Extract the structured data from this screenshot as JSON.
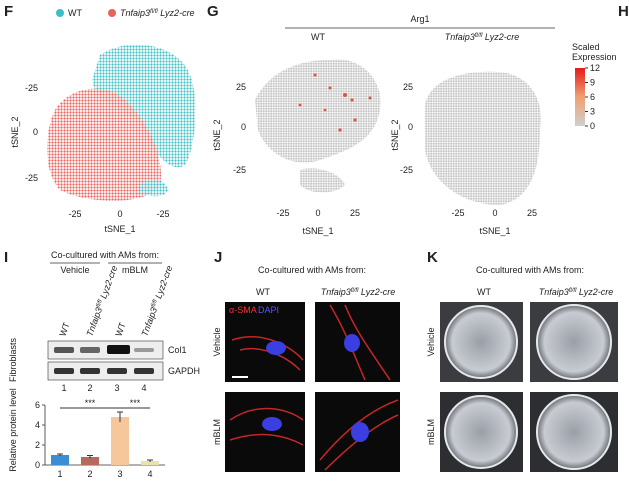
{
  "panel_f": {
    "label": "F",
    "legend": [
      {
        "name": "WT",
        "color": "#3bbfc4"
      },
      {
        "gene": "Tnfaip3",
        "sup": "fl/fl",
        "driver": "Lyz2-cre",
        "color": "#e8615a"
      }
    ],
    "yticks": [
      "-25",
      "0",
      "-25"
    ],
    "xticks": [
      "-25",
      "0",
      "-25"
    ],
    "xlabel": "tSNE_1",
    "ylabel": "tSNE_2"
  },
  "panel_g": {
    "label": "G",
    "title": "Arg1",
    "left_title": "WT",
    "right_title": {
      "gene": "Tnfaip3",
      "sup": "fl/fl",
      "driver": "Lyz2-cre"
    },
    "yticks": [
      "25",
      "0",
      "-25"
    ],
    "xticks": [
      "-25",
      "0",
      "25"
    ],
    "xlabel": "tSNE_1",
    "ylabel": "tSNE_2",
    "colorbar": {
      "title": [
        "Scaled",
        "Expression"
      ],
      "lim": [
        0,
        12
      ],
      "ticks": [
        12,
        9,
        6,
        3,
        0
      ]
    }
  },
  "panel_h": {
    "label": "H"
  },
  "panel_i": {
    "label": "I",
    "header": "Co-cultured with AMs from:",
    "groups": [
      "Vehicle",
      "mBLM"
    ],
    "lanes": [
      "WT",
      {
        "gene": "Tnfaip3",
        "sup": "fl/fl",
        "driver": "Lyz2-cre"
      },
      "WT",
      {
        "gene": "Tnfaip3",
        "sup": "fl/fl",
        "driver": "Lyz2-cre"
      }
    ],
    "row_title": "Fibroblasts",
    "bands": [
      "Col1",
      "GAPDH"
    ],
    "lane_numbers": [
      "1",
      "2",
      "3",
      "4"
    ],
    "chart_data": {
      "type": "bar",
      "ylabel": "Relative protein level",
      "categories": [
        "1",
        "2",
        "3",
        "4"
      ],
      "values": [
        1.0,
        0.8,
        4.8,
        0.4
      ],
      "errors": [
        0.1,
        0.15,
        0.5,
        0.1
      ],
      "colors": [
        "#3a8fd4",
        "#b9685e",
        "#f7c79c",
        "#e6e3ae"
      ],
      "ylim": [
        0,
        6
      ],
      "yticks": [
        0,
        2,
        4,
        6
      ],
      "annotations": [
        "***",
        "***"
      ]
    }
  },
  "panel_j": {
    "label": "J",
    "header": "Co-cultured with AMs from:",
    "cols": [
      "WT",
      {
        "gene": "Tnfaip3",
        "sup": "fl/fl",
        "driver": "Lyz2-cre"
      }
    ],
    "rows": [
      "Vehicle",
      "mBLM"
    ],
    "stain": [
      "α-SMA",
      "DAPI"
    ]
  },
  "panel_k": {
    "label": "K",
    "header": "Co-cultured with AMs from:",
    "cols": [
      "WT",
      {
        "gene": "Tnfaip3",
        "sup": "fl/fl",
        "driver": "Lyz2-cre"
      }
    ],
    "rows": [
      "Vehicle",
      "mBLM"
    ]
  }
}
